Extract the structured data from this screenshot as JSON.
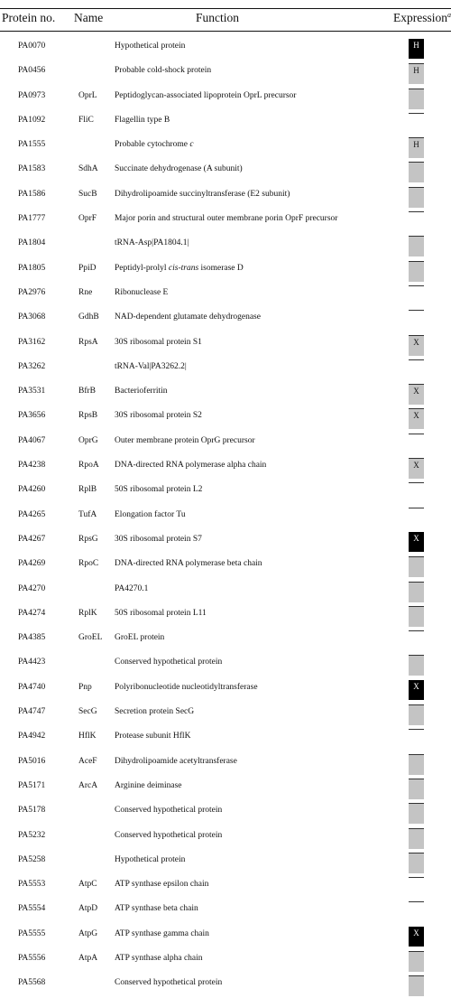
{
  "caption": "",
  "headers": {
    "protein_no": "Protein no.",
    "name": "Name",
    "function": "Function",
    "expression": "Expression",
    "expression_sup": "a"
  },
  "rows": [
    {
      "id": "PA0070",
      "name": "",
      "function": "Hypothetical protein",
      "expr": "H",
      "style": "black"
    },
    {
      "id": "PA0456",
      "name": "",
      "function": "Probable cold-shock protein",
      "expr": "H",
      "style": "gray"
    },
    {
      "id": "PA0973",
      "name": "OprL",
      "function": "Peptidoglycan-associated lipoprotein OprL precursor",
      "expr": "",
      "style": "gray"
    },
    {
      "id": "PA1092",
      "name": "FliC",
      "function": "Flagellin type B",
      "expr": "",
      "style": "blank"
    },
    {
      "id": "PA1555",
      "name": "",
      "function": "Probable cytochrome c",
      "expr": "H",
      "style": "gray"
    },
    {
      "id": "PA1583",
      "name": "SdhA",
      "function": "Succinate dehydrogenase (A subunit)",
      "expr": "",
      "style": "gray"
    },
    {
      "id": "PA1586",
      "name": "SucB",
      "function": "Dihydrolipoamide succinyltransferase (E2 subunit)",
      "expr": "",
      "style": "gray"
    },
    {
      "id": "PA1777",
      "name": "OprF",
      "function": "Major porin and structural outer membrane porin OprF precursor",
      "expr": "",
      "style": "blank"
    },
    {
      "id": "PA1804",
      "name": "",
      "function": "tRNA-Asp|PA1804.1|",
      "expr": "",
      "style": "gray"
    },
    {
      "id": "PA1805",
      "name": "PpiD",
      "function": "Peptidyl-prolyl cis-trans isomerase D",
      "expr": "",
      "style": "gray"
    },
    {
      "id": "PA2976",
      "name": "Rne",
      "function": "Ribonuclease E",
      "expr": "",
      "style": "blank"
    },
    {
      "id": "PA3068",
      "name": "GdhB",
      "function": "NAD-dependent glutamate dehydrogenase",
      "expr": "",
      "style": "blank"
    },
    {
      "id": "PA3162",
      "name": "RpsA",
      "function": "30S ribosomal protein S1",
      "expr": "X",
      "style": "gray"
    },
    {
      "id": "PA3262",
      "name": "",
      "function": "tRNA-Val|PA3262.2|",
      "expr": "",
      "style": "blank"
    },
    {
      "id": "PA3531",
      "name": "BfrB",
      "function": "Bacterioferritin",
      "expr": "X",
      "style": "gray"
    },
    {
      "id": "PA3656",
      "name": "RpsB",
      "function": "30S ribosomal protein S2",
      "expr": "X",
      "style": "gray"
    },
    {
      "id": "PA4067",
      "name": "OprG",
      "function": "Outer membrane protein OprG precursor",
      "expr": "",
      "style": "blank"
    },
    {
      "id": "PA4238",
      "name": "RpoA",
      "function": "DNA-directed RNA polymerase alpha chain",
      "expr": "X",
      "style": "gray"
    },
    {
      "id": "PA4260",
      "name": "RplB",
      "function": "50S ribosomal protein L2",
      "expr": "",
      "style": "blank"
    },
    {
      "id": "PA4265",
      "name": "TufA",
      "function": "Elongation factor Tu",
      "expr": "",
      "style": "blank"
    },
    {
      "id": "PA4267",
      "name": "RpsG",
      "function": "30S ribosomal protein S7",
      "expr": "X",
      "style": "black"
    },
    {
      "id": "PA4269",
      "name": "RpoC",
      "function": "DNA-directed RNA polymerase beta chain",
      "expr": "",
      "style": "gray"
    },
    {
      "id": "PA4270",
      "name": "",
      "function": "PA4270.1",
      "expr": "",
      "style": "gray"
    },
    {
      "id": "PA4274",
      "name": "RplK",
      "function": "50S ribosomal protein L11",
      "expr": "",
      "style": "gray"
    },
    {
      "id": "PA4385",
      "name": "GroEL",
      "function": "GroEL protein",
      "expr": "",
      "style": "blank"
    },
    {
      "id": "PA4423",
      "name": "",
      "function": "Conserved hypothetical protein",
      "expr": "",
      "style": "gray"
    },
    {
      "id": "PA4740",
      "name": "Pnp",
      "function": "Polyribonucleotide nucleotidyltransferase",
      "expr": "X",
      "style": "black"
    },
    {
      "id": "PA4747",
      "name": "SecG",
      "function": "Secretion protein SecG",
      "expr": "",
      "style": "gray"
    },
    {
      "id": "PA4942",
      "name": "HflK",
      "function": "Protease subunit HflK",
      "expr": "",
      "style": "blank"
    },
    {
      "id": "PA5016",
      "name": "AceF",
      "function": "Dihydrolipoamide acetyltransferase",
      "expr": "",
      "style": "gray"
    },
    {
      "id": "PA5171",
      "name": "ArcA",
      "function": "Arginine deiminase",
      "expr": "",
      "style": "gray"
    },
    {
      "id": "PA5178",
      "name": "",
      "function": "Conserved hypothetical protein",
      "expr": "",
      "style": "gray"
    },
    {
      "id": "PA5232",
      "name": "",
      "function": "Conserved hypothetical protein",
      "expr": "",
      "style": "gray"
    },
    {
      "id": "PA5258",
      "name": "",
      "function": "Hypothetical protein",
      "expr": "",
      "style": "gray"
    },
    {
      "id": "PA5553",
      "name": "AtpC",
      "function": "ATP synthase epsilon chain",
      "expr": "",
      "style": "blank"
    },
    {
      "id": "PA5554",
      "name": "AtpD",
      "function": "ATP synthase beta chain",
      "expr": "",
      "style": "blank"
    },
    {
      "id": "PA5555",
      "name": "AtpG",
      "function": "ATP synthase gamma chain",
      "expr": "X",
      "style": "black"
    },
    {
      "id": "PA5556",
      "name": "AtpA",
      "function": "ATP synthase alpha chain",
      "expr": "",
      "style": "gray"
    },
    {
      "id": "PA5568",
      "name": "",
      "function": "Conserved hypothetical protein",
      "expr": "",
      "style": "gray"
    }
  ]
}
